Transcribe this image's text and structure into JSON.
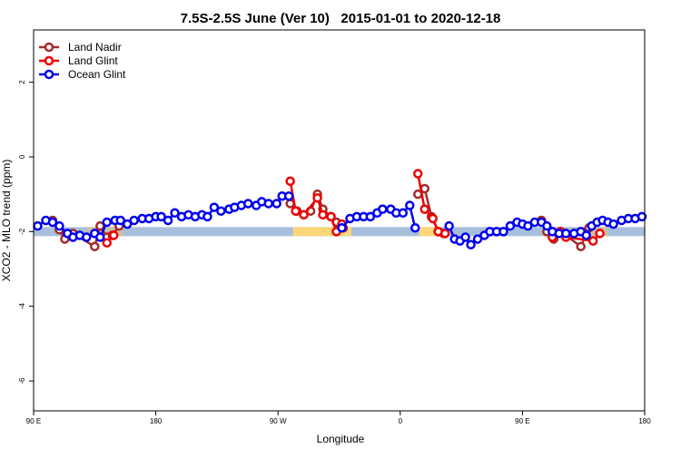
{
  "chart_data": {
    "type": "line",
    "title": "7.5S-2.5S June (Ver 10)   2015-01-01 to 2020-12-18",
    "x_label": "Longitude",
    "y_label": "XCO2 - MLO trend (ppm)",
    "xlim": [
      90,
      540
    ],
    "xticks": [
      {
        "value": 90,
        "label": "90 E"
      },
      180,
      {
        "value": 270,
        "label": "90 W"
      },
      {
        "value": 360,
        "label": "0"
      },
      {
        "value": 450,
        "label": "90 E"
      },
      {
        "value": 540,
        "label": "180"
      }
    ],
    "ylim": [
      -6.8,
      3.4
    ],
    "yticks": [
      2,
      0,
      -2,
      -4,
      -6
    ],
    "legend": "top-left",
    "bands": {
      "y": -2,
      "segments": [
        {
          "x": [
            90,
            540
          ],
          "color": "#a8bfdc"
        },
        {
          "x": [
            129,
            156
          ],
          "color": "#cdbfa6"
        },
        {
          "x": [
            281,
            324
          ],
          "color": "#fbd77a"
        },
        {
          "x": [
            374,
            388
          ],
          "color": "#fbd77a"
        },
        {
          "x": [
            493,
            513
          ],
          "color": "#cdbfa6"
        }
      ]
    },
    "series": [
      {
        "name": "Land Nadir",
        "color": "#a52a2a",
        "x": [
          104,
          109,
          113,
          119,
          135,
          139,
          144,
          148,
          153,
          null,
          279,
          284,
          289,
          294,
          299,
          303,
          309,
          313,
          318,
          null,
          373,
          378,
          383,
          388,
          392,
          null,
          464,
          468,
          473,
          478,
          482,
          493,
          499
        ],
        "values": [
          -1.7,
          -1.95,
          -2.2,
          -2.05,
          -2.4,
          -1.85,
          -2.15,
          -2.1,
          -1.85,
          null,
          -1.25,
          -1.45,
          -1.55,
          -1.45,
          -1.0,
          -1.4,
          -1.6,
          -1.75,
          -1.9,
          null,
          -1.0,
          -0.85,
          -1.6,
          -2.0,
          -2.05,
          null,
          -1.7,
          -2.0,
          -2.2,
          -2.0,
          -2.1,
          -2.4,
          -1.9
        ]
      },
      {
        "name": "Land Glint",
        "color": "#ee0000",
        "x": [
          144,
          149,
          null,
          279,
          283,
          289,
          299,
          303,
          309,
          313,
          317,
          null,
          373,
          378,
          384,
          388,
          393,
          null,
          472,
          478,
          482,
          502,
          507
        ],
        "values": [
          -2.3,
          -2.1,
          null,
          -0.65,
          -1.45,
          -1.55,
          -1.1,
          -1.55,
          -1.6,
          -2.0,
          -1.8,
          null,
          -0.45,
          -1.4,
          -1.65,
          -2.0,
          -2.05,
          null,
          -2.15,
          -2.0,
          -2.15,
          -2.25,
          -2.05
        ]
      },
      {
        "name": "Ocean Glint",
        "color": "#0000ee",
        "x": [
          93,
          99,
          104,
          109,
          115,
          119,
          124,
          129,
          135,
          139,
          144,
          150,
          154,
          159,
          164,
          170,
          175,
          180,
          184,
          189,
          194,
          199,
          204,
          209,
          214,
          218,
          223,
          228,
          234,
          238,
          243,
          248,
          254,
          258,
          263,
          269,
          273,
          278,
          null,
          317,
          323,
          328,
          333,
          338,
          343,
          347,
          353,
          357,
          362,
          367,
          371,
          null,
          396,
          400,
          404,
          408,
          412,
          417,
          422,
          426,
          431,
          436,
          441,
          446,
          450,
          454,
          459,
          464,
          468,
          472,
          477,
          482,
          488,
          493,
          497,
          501,
          505,
          509,
          513,
          517,
          523,
          528,
          533,
          538
        ],
        "values": [
          -1.85,
          -1.7,
          -1.75,
          -1.85,
          -2.05,
          -2.15,
          -2.1,
          -2.15,
          -2.05,
          -2.15,
          -1.75,
          -1.7,
          -1.7,
          -1.8,
          -1.7,
          -1.65,
          -1.65,
          -1.6,
          -1.6,
          -1.7,
          -1.5,
          -1.6,
          -1.55,
          -1.6,
          -1.55,
          -1.6,
          -1.35,
          -1.45,
          -1.4,
          -1.35,
          -1.3,
          -1.25,
          -1.3,
          -1.2,
          -1.25,
          -1.25,
          -1.05,
          -1.05,
          null,
          -1.9,
          -1.65,
          -1.6,
          -1.6,
          -1.6,
          -1.5,
          -1.4,
          -1.4,
          -1.5,
          -1.5,
          -1.3,
          -1.9,
          null,
          -1.85,
          -2.2,
          -2.25,
          -2.15,
          -2.35,
          -2.2,
          -2.1,
          -2.0,
          -2.0,
          -2.0,
          -1.85,
          -1.75,
          -1.8,
          -1.85,
          -1.75,
          -1.75,
          -1.85,
          -2.0,
          -2.05,
          -2.05,
          -2.05,
          -2.0,
          -2.1,
          -1.85,
          -1.75,
          -1.7,
          -1.75,
          -1.8,
          -1.7,
          -1.65,
          -1.65,
          -1.6
        ]
      }
    ]
  }
}
